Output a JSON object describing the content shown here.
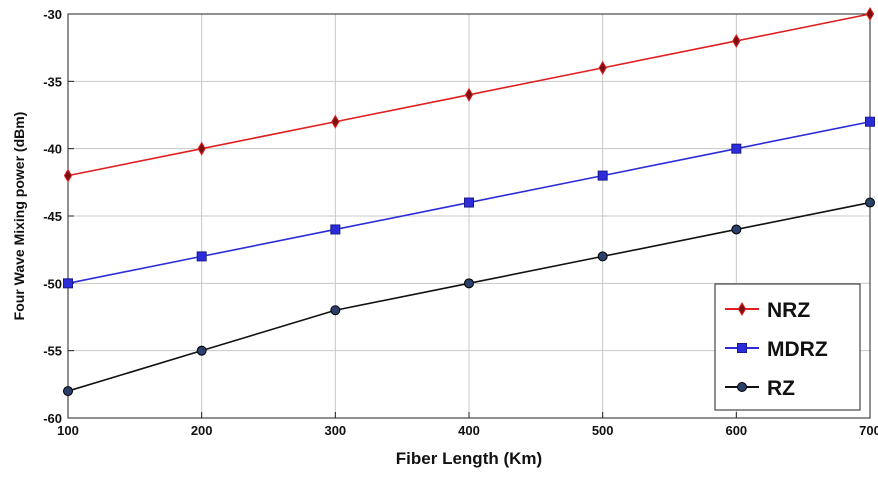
{
  "chart_data": {
    "type": "line",
    "xlabel": "Fiber Length (Km)",
    "ylabel": "Four Wave Mixing power (dBm)",
    "x": [
      100,
      200,
      300,
      400,
      500,
      600,
      700
    ],
    "xlim": [
      100,
      700
    ],
    "ylim": [
      -60,
      -30
    ],
    "xticks": [
      "100",
      "200",
      "300",
      "400",
      "500",
      "600",
      "700"
    ],
    "yticks": [
      "-30",
      "-35",
      "-40",
      "-45",
      "-50",
      "-55",
      "-60"
    ],
    "grid": true,
    "legend_position": "bottom-right",
    "series": [
      {
        "name": "NRZ",
        "color": "#e02020",
        "marker": "diamond",
        "values": [
          -42,
          -40,
          -38,
          -36,
          -34,
          -32,
          -30
        ]
      },
      {
        "name": "MDRZ",
        "color": "#2c2cd8",
        "marker": "square",
        "values": [
          -50,
          -48,
          -46,
          -44,
          -42,
          -40,
          -38
        ]
      },
      {
        "name": "RZ",
        "color": "#111111",
        "marker": "circle",
        "values": [
          -58,
          -55,
          -52,
          -50,
          -48,
          -46,
          -44
        ]
      }
    ]
  }
}
